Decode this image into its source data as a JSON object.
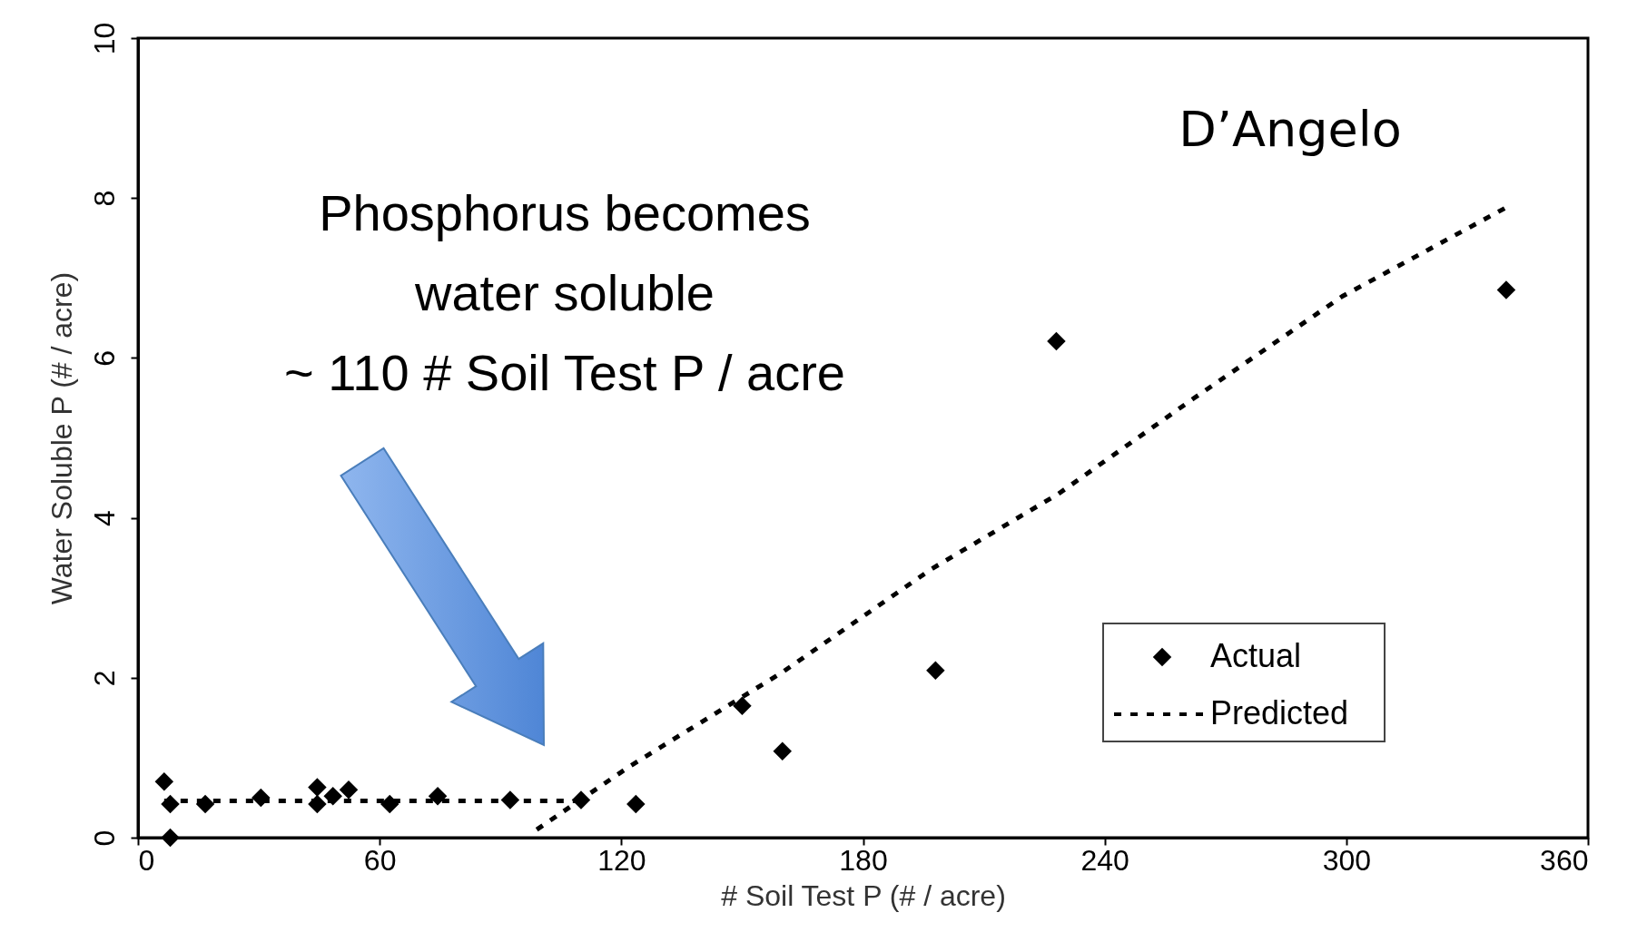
{
  "chart_data": {
    "type": "scatter",
    "xlabel": "# Soil Test P (# / acre)",
    "ylabel": "Water Soluble P (# / acre)",
    "xlim": [
      0,
      360
    ],
    "xticks": [
      0,
      60,
      120,
      180,
      240,
      300,
      360
    ],
    "ylim": [
      0,
      10
    ],
    "yticks": [
      0,
      2,
      4,
      6,
      8,
      10
    ],
    "grid": false,
    "legend": "bottom right",
    "annotations": [
      "Phosphorus becomes\nwater soluble\n~ 110 # Soil Test P / acre",
      "D’Angelo"
    ],
    "series": [
      {
        "name": "Actual",
        "marker": "diamond",
        "color": "#000000",
        "x": [
          6.5,
          8,
          8,
          16.7,
          30.5,
          44.5,
          44.5,
          48.4,
          52.3,
          62.5,
          74.4,
          92.4,
          110,
          123.6,
          150,
          160,
          198,
          228,
          339.7
        ],
        "values": [
          0.7,
          0.42,
          0,
          0.42,
          0.5,
          0.63,
          0.42,
          0.52,
          0.6,
          0.42,
          0.52,
          0.47,
          0.47,
          0.42,
          1.65,
          1.08,
          2.09,
          6.21,
          6.85
        ]
      },
      {
        "name": "Predicted",
        "type": "line",
        "marker": "none",
        "line_style": "dashed",
        "color": "#000000",
        "x": [
          6.5,
          30,
          60,
          90,
          110
        ],
        "values": [
          0.46,
          0.46,
          0.46,
          0.46,
          0.46
        ]
      },
      {
        "type": "line",
        "marker": "none",
        "line_style": "dashed",
        "color": "#000000",
        "x": [
          99,
          122,
          160,
          197,
          228.5,
          262,
          299,
          340
        ],
        "values": [
          0.1,
          0.89,
          2.07,
          3.36,
          4.3,
          5.49,
          6.77,
          7.89
        ]
      }
    ]
  }
}
